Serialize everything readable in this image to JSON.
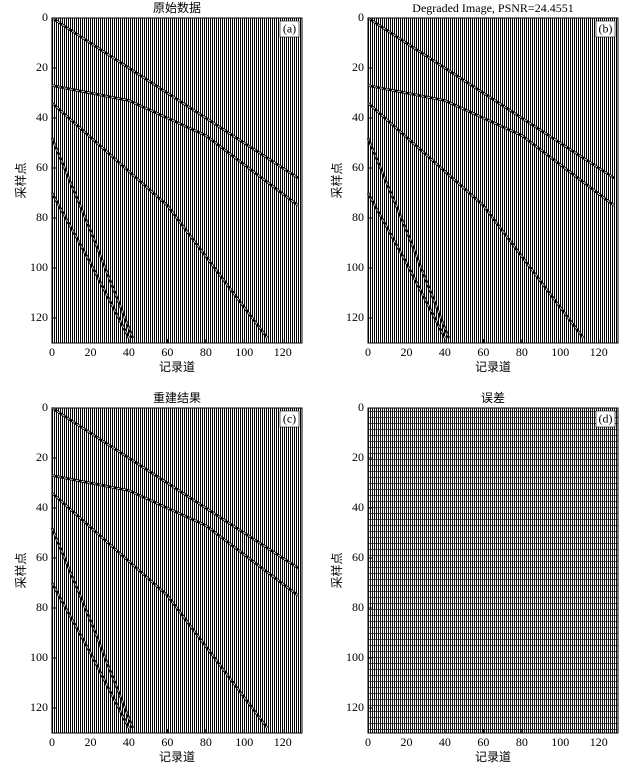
{
  "chart_data": [
    {
      "type": "line",
      "title": "原始数据",
      "panel_label": "(a)",
      "xlabel": "记录道",
      "ylabel": "采样点",
      "y_inverted": true,
      "xlim": [
        0,
        130
      ],
      "ylim": [
        0,
        130
      ],
      "xticks": [
        0,
        20,
        40,
        60,
        80,
        100,
        120
      ],
      "yticks": [
        0,
        20,
        40,
        60,
        80,
        100,
        120
      ],
      "series": [
        {
          "color": "#000000",
          "x": [
            0,
            128
          ],
          "values": [
            0,
            64
          ]
        },
        {
          "color": "#000000",
          "x": [
            0,
            40,
            80,
            128
          ],
          "values": [
            27,
            33,
            47,
            75
          ]
        },
        {
          "color": "#000000",
          "x": [
            0,
            60,
            112
          ],
          "values": [
            34,
            75,
            128
          ]
        },
        {
          "color": "#000000",
          "x": [
            0,
            20,
            42
          ],
          "values": [
            48,
            85,
            128
          ]
        },
        {
          "color": "#000000",
          "x": [
            0,
            20,
            40
          ],
          "values": [
            70,
            98,
            128
          ]
        }
      ]
    },
    {
      "type": "line",
      "title": "Degraded Image, PSNR=24.4551",
      "panel_label": "(b)",
      "xlabel": "记录道",
      "ylabel": "采样点",
      "y_inverted": true,
      "xlim": [
        0,
        130
      ],
      "ylim": [
        0,
        130
      ],
      "xticks": [
        0,
        20,
        40,
        60,
        80,
        100,
        120
      ],
      "yticks": [
        0,
        20,
        40,
        60,
        80,
        100,
        120
      ],
      "series": [
        {
          "color": "#000000",
          "x": [
            0,
            128
          ],
          "values": [
            0,
            64
          ]
        },
        {
          "color": "#000000",
          "x": [
            0,
            40,
            80,
            128
          ],
          "values": [
            27,
            33,
            47,
            75
          ]
        },
        {
          "color": "#000000",
          "x": [
            0,
            60,
            112
          ],
          "values": [
            34,
            75,
            128
          ]
        },
        {
          "color": "#000000",
          "x": [
            0,
            20,
            42
          ],
          "values": [
            48,
            85,
            128
          ]
        },
        {
          "color": "#000000",
          "x": [
            0,
            20,
            40
          ],
          "values": [
            70,
            98,
            128
          ]
        }
      ]
    },
    {
      "type": "line",
      "title": "重建结果",
      "panel_label": "(c)",
      "xlabel": "记录道",
      "ylabel": "采样点",
      "y_inverted": true,
      "xlim": [
        0,
        130
      ],
      "ylim": [
        0,
        130
      ],
      "xticks": [
        0,
        20,
        40,
        60,
        80,
        100,
        120
      ],
      "yticks": [
        0,
        20,
        40,
        60,
        80,
        100,
        120
      ],
      "series": [
        {
          "color": "#000000",
          "x": [
            0,
            128
          ],
          "values": [
            0,
            64
          ]
        },
        {
          "color": "#000000",
          "x": [
            0,
            40,
            80,
            128
          ],
          "values": [
            27,
            33,
            47,
            75
          ]
        },
        {
          "color": "#000000",
          "x": [
            0,
            60,
            112
          ],
          "values": [
            34,
            75,
            128
          ]
        },
        {
          "color": "#000000",
          "x": [
            0,
            20,
            42
          ],
          "values": [
            48,
            85,
            128
          ]
        },
        {
          "color": "#000000",
          "x": [
            0,
            20,
            40
          ],
          "values": [
            70,
            98,
            128
          ]
        }
      ]
    },
    {
      "type": "line",
      "title": "误差",
      "panel_label": "(d)",
      "xlabel": "记录道",
      "ylabel": "采样点",
      "y_inverted": true,
      "xlim": [
        0,
        130
      ],
      "ylim": [
        0,
        130
      ],
      "xticks": [
        0,
        20,
        40,
        60,
        80,
        100,
        120
      ],
      "yticks": [
        0,
        20,
        40,
        60,
        80,
        100,
        120
      ],
      "series": []
    }
  ]
}
